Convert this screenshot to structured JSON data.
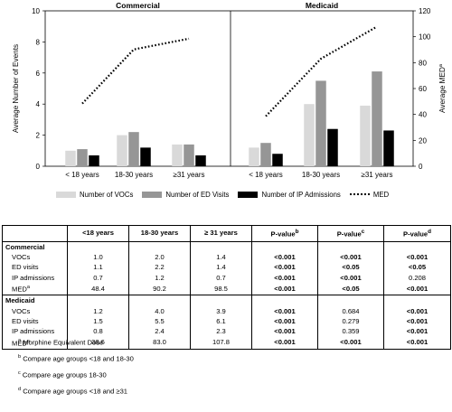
{
  "chart_data": {
    "type": "bar",
    "panels": [
      {
        "title": "Commercial",
        "categories": [
          "< 18 years",
          "18-30 years",
          "≥31 years"
        ],
        "series": [
          {
            "name": "Number of VOCs",
            "values": [
              1.0,
              2.0,
              1.4
            ],
            "color": "#d9d9d9"
          },
          {
            "name": "Number of ED Visits",
            "values": [
              1.1,
              2.2,
              1.4
            ],
            "color": "#969696"
          },
          {
            "name": "Number of IP Admissions",
            "values": [
              0.7,
              1.2,
              0.7
            ],
            "color": "#000000"
          }
        ],
        "line": {
          "name": "MED",
          "values": [
            48.4,
            90.2,
            98.5
          ]
        }
      },
      {
        "title": "Medicaid",
        "categories": [
          "< 18 years",
          "18-30 years",
          "≥31 years"
        ],
        "series": [
          {
            "name": "Number of VOCs",
            "values": [
              1.2,
              4.0,
              3.9
            ],
            "color": "#d9d9d9"
          },
          {
            "name": "Number of ED Visits",
            "values": [
              1.5,
              5.5,
              6.1
            ],
            "color": "#969696"
          },
          {
            "name": "Number of IP Admissions",
            "values": [
              0.8,
              2.4,
              2.3
            ],
            "color": "#000000"
          }
        ],
        "line": {
          "name": "MED",
          "values": [
            38.6,
            83.0,
            107.8
          ]
        }
      }
    ],
    "ylabel_left": "Average Number of Events",
    "ylim_left": [
      0,
      10
    ],
    "yticks_left": [
      "0",
      "2",
      "4",
      "6",
      "8",
      "10"
    ],
    "ylabel_right": "Average MED",
    "ylabel_right_sup": "a",
    "ylim_right": [
      0,
      120
    ],
    "yticks_right": [
      "0",
      "20",
      "40",
      "60",
      "80",
      "100",
      "120"
    ],
    "legend_placement": "bottom"
  },
  "legend": {
    "vocs": "Number of VOCs",
    "ed": "Number of ED Visits",
    "ip": "Number of IP Admissions",
    "med": "MED"
  },
  "table": {
    "headers": [
      "",
      "<18 years",
      "18-30 years",
      "≥ 31 years",
      "P-value",
      "P-value",
      "P-value"
    ],
    "header_sups": [
      "",
      "",
      "",
      "",
      "b",
      "c",
      "d"
    ],
    "sections": [
      {
        "title": "Commercial",
        "rows": [
          {
            "label": "VOCs",
            "label_sup": "",
            "cells": [
              "1.0",
              "2.0",
              "1.4",
              "<0.001",
              "<0.001",
              "<0.001"
            ],
            "bold": [
              false,
              false,
              false,
              true,
              true,
              true
            ]
          },
          {
            "label": "ED visits",
            "label_sup": "",
            "cells": [
              "1.1",
              "2.2",
              "1.4",
              "<0.001",
              "<0.05",
              "<0.05"
            ],
            "bold": [
              false,
              false,
              false,
              true,
              true,
              true
            ]
          },
          {
            "label": "IP admissions",
            "label_sup": "",
            "cells": [
              "0.7",
              "1.2",
              "0.7",
              "<0.001",
              "<0.001",
              "0.208"
            ],
            "bold": [
              false,
              false,
              false,
              true,
              true,
              false
            ]
          },
          {
            "label": "MED",
            "label_sup": "a",
            "cells": [
              "48.4",
              "90.2",
              "98.5",
              "<0.001",
              "<0.05",
              "<0.001"
            ],
            "bold": [
              false,
              false,
              false,
              true,
              true,
              true
            ]
          }
        ]
      },
      {
        "title": "Medicaid",
        "rows": [
          {
            "label": "VOCs",
            "label_sup": "",
            "cells": [
              "1.2",
              "4.0",
              "3.9",
              "<0.001",
              "0.684",
              "<0.001"
            ],
            "bold": [
              false,
              false,
              false,
              true,
              false,
              true
            ]
          },
          {
            "label": "ED visits",
            "label_sup": "",
            "cells": [
              "1.5",
              "5.5",
              "6.1",
              "<0.001",
              "0.279",
              "<0.001"
            ],
            "bold": [
              false,
              false,
              false,
              true,
              false,
              true
            ]
          },
          {
            "label": "IP admissions",
            "label_sup": "",
            "cells": [
              "0.8",
              "2.4",
              "2.3",
              "<0.001",
              "0.359",
              "<0.001"
            ],
            "bold": [
              false,
              false,
              false,
              true,
              false,
              true
            ]
          },
          {
            "label": "MED",
            "label_sup": "a",
            "cells": [
              "38.6",
              "83.0",
              "107.8",
              "<0.001",
              "<0.001",
              "<0.001"
            ],
            "bold": [
              false,
              false,
              false,
              true,
              true,
              true
            ]
          }
        ]
      }
    ]
  },
  "footnotes": [
    {
      "sup": "a",
      "text": "Morphine Equivalent Dose"
    },
    {
      "sup": "b",
      "text": "Compare age groups <18 and 18-30"
    },
    {
      "sup": "c",
      "text": "Compare age groups 18-30"
    },
    {
      "sup": "d",
      "text": "Compare age groups <18 and ≥31"
    }
  ]
}
